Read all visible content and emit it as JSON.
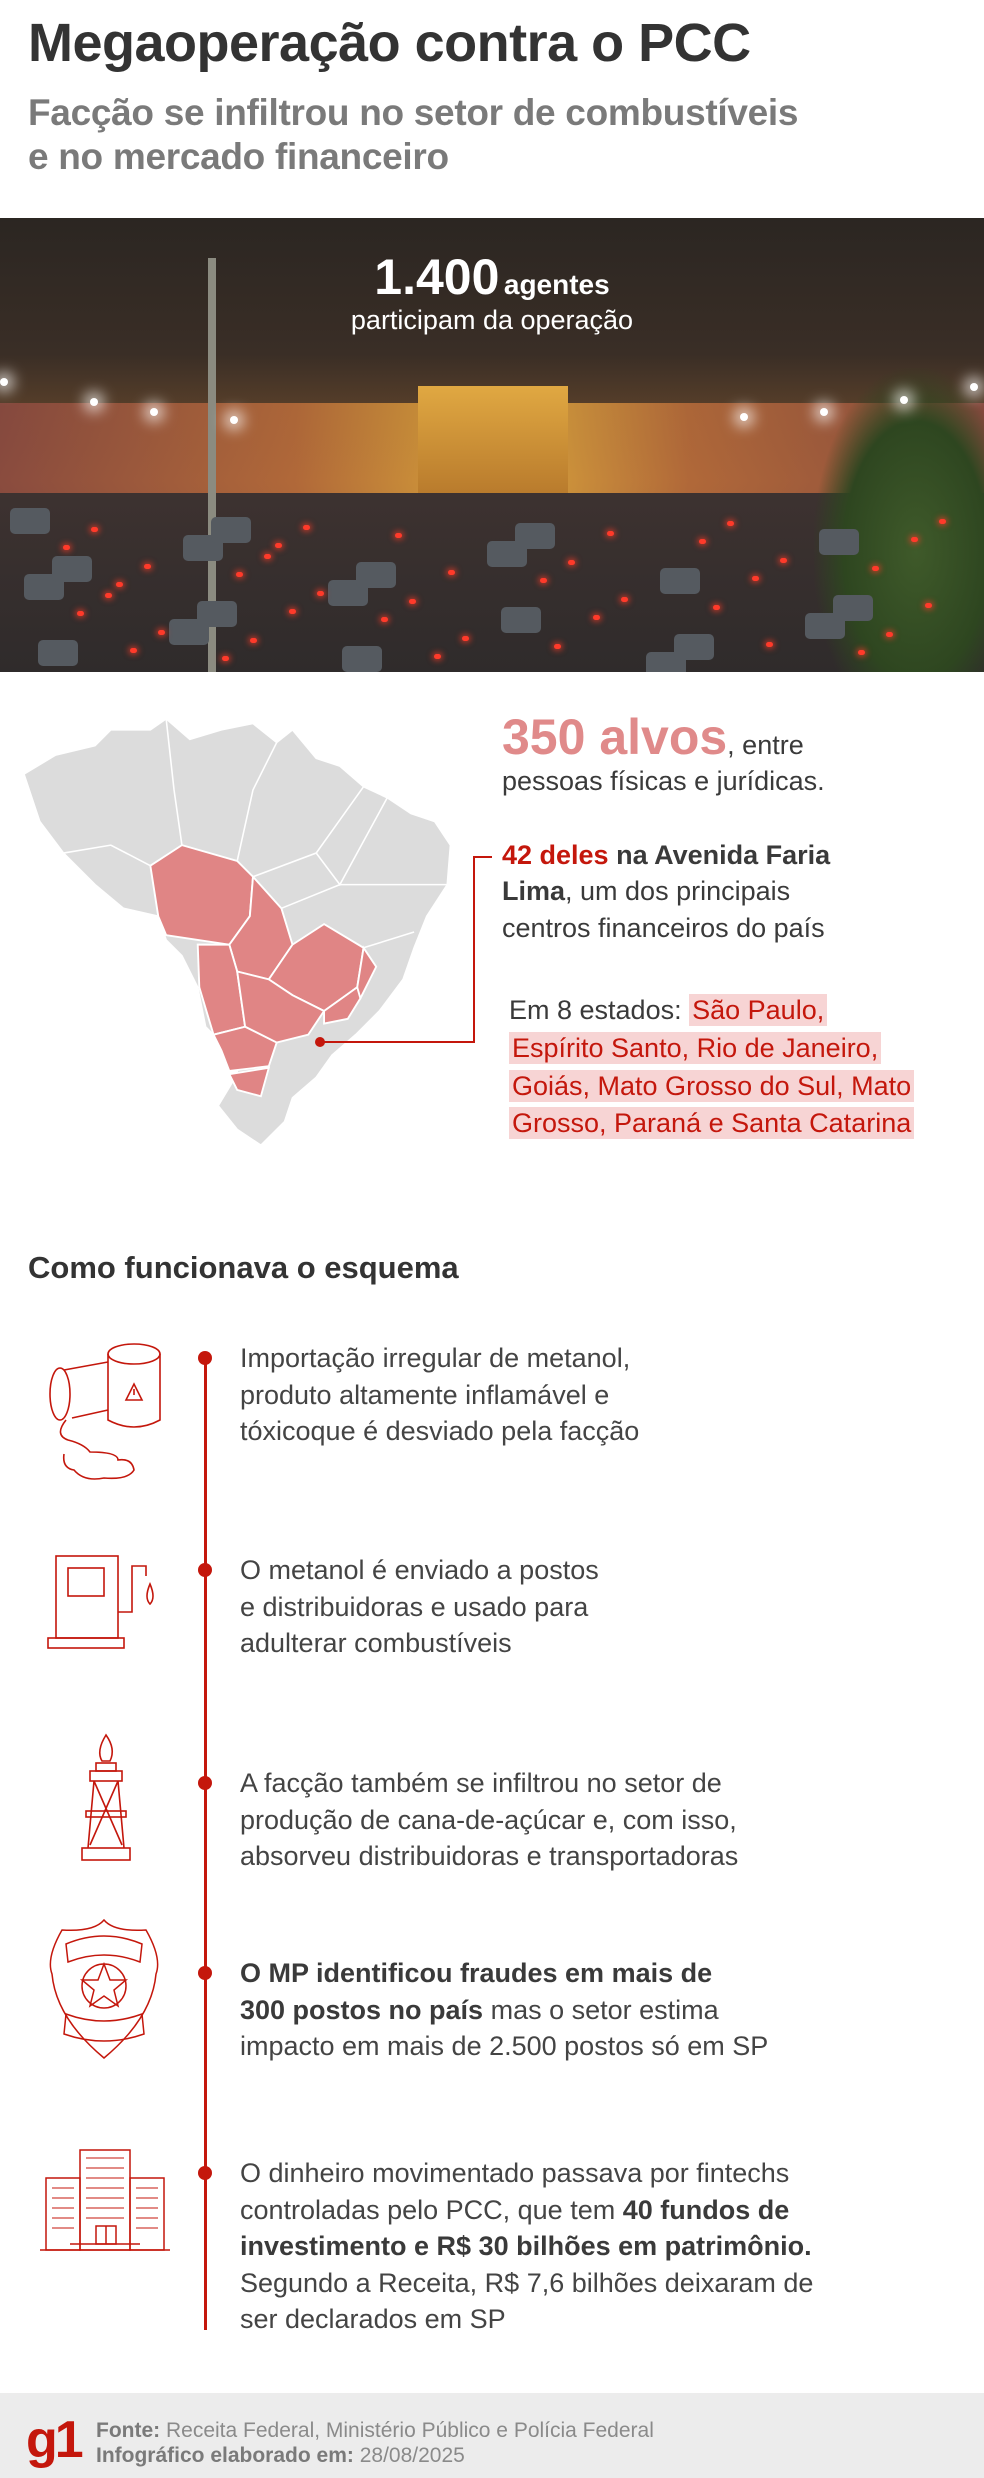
{
  "header": {
    "title": "Megaoperação contra o PCC",
    "subtitle_lines": [
      "Facção se infiltrou no setor de combustíveis",
      "e no mercado financeiro"
    ]
  },
  "photo": {
    "agents_number": "1.400",
    "agents_unit": "agentes",
    "agents_caption": "participam da operação"
  },
  "targets": {
    "number": "350 alvos",
    "after_number": ", entre",
    "line2": "pessoas físicas e jurídicas.",
    "faria_red": "42 deles",
    "faria_bold": " na Avenida Faria",
    "faria_bold2": "Lima",
    "faria_rest": ", um dos principais",
    "faria_line3": "centros financeiros do país",
    "states_prefix": "Em 8 estados:",
    "states_lines": [
      "São Paulo,",
      "Espírito Santo, Rio de Janeiro,",
      "Goiás, Mato Grosso do Sul, Mato",
      "Grosso, Paraná e Santa Catarina"
    ]
  },
  "map": {
    "highlight_color": "#e08585",
    "base_color": "#dcdcdc",
    "highlighted_states": [
      "São Paulo",
      "Espírito Santo",
      "Rio de Janeiro",
      "Goiás",
      "Mato Grosso do Sul",
      "Mato Grosso",
      "Paraná",
      "Santa Catarina"
    ]
  },
  "steps": {
    "title": "Como funcionava o esquema",
    "accent_color": "#c4170c",
    "items": [
      {
        "icon": "methanol-barrel-icon",
        "lines": [
          [
            {
              "t": "Importação irregular de metanol,",
              "b": false
            }
          ],
          [
            {
              "t": "produto altamente inflamável e",
              "b": false
            }
          ],
          [
            {
              "t": "tóxicoque é desviado pela facção",
              "b": false
            }
          ]
        ]
      },
      {
        "icon": "fuel-pump-icon",
        "lines": [
          [
            {
              "t": "O metanol é enviado a postos",
              "b": false
            }
          ],
          [
            {
              "t": "e distribuidoras e usado para",
              "b": false
            }
          ],
          [
            {
              "t": "adulterar combustíveis",
              "b": false
            }
          ]
        ]
      },
      {
        "icon": "oil-derrick-flame-icon",
        "lines": [
          [
            {
              "t": "A facção também se infiltrou no setor de",
              "b": false
            }
          ],
          [
            {
              "t": "produção de cana-de-açúcar e, com isso,",
              "b": false
            }
          ],
          [
            {
              "t": "absorveu distribuidoras e transportadoras",
              "b": false
            }
          ]
        ]
      },
      {
        "icon": "police-badge-icon",
        "lines": [
          [
            {
              "t": "O MP identificou fraudes em mais de",
              "b": true
            }
          ],
          [
            {
              "t": "300 postos no país",
              "b": true
            },
            {
              "t": " mas o setor estima",
              "b": false
            }
          ],
          [
            {
              "t": "impacto em mais de 2.500 postos só em SP",
              "b": false
            }
          ]
        ]
      },
      {
        "icon": "office-buildings-icon",
        "lines": [
          [
            {
              "t": "O dinheiro movimentado passava por fintechs",
              "b": false
            }
          ],
          [
            {
              "t": "controladas pelo PCC, que tem ",
              "b": false
            },
            {
              "t": "40 fundos de",
              "b": true
            }
          ],
          [
            {
              "t": "investimento e R$ 30 bilhões em patrimônio.",
              "b": true
            }
          ],
          [
            {
              "t": "Segundo a Receita, R$ 7,6 bilhões deixaram de",
              "b": false
            }
          ],
          [
            {
              "t": "ser declarados em SP",
              "b": false
            }
          ]
        ]
      }
    ]
  },
  "footer": {
    "logo": "g1",
    "source_label": "Fonte:",
    "source_value": " Receita Federal, Ministério Público e Polícia Federal",
    "date_label": "Infográfico elaborado em:",
    "date_value": " 28/08/2025"
  }
}
